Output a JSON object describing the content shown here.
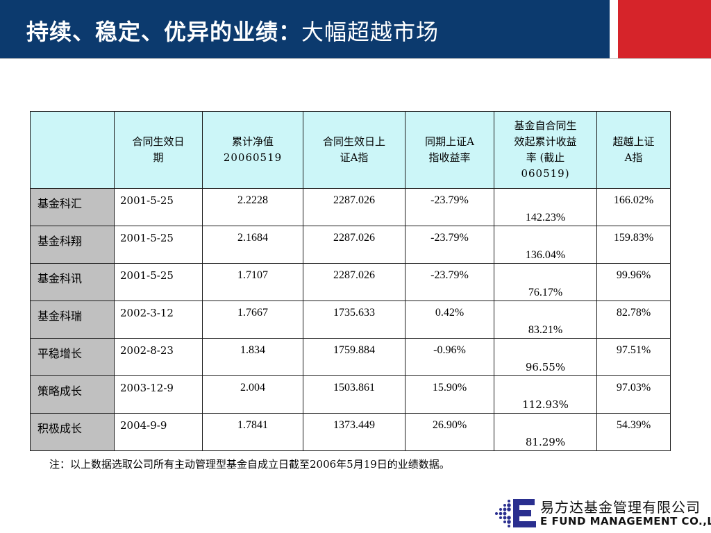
{
  "title": {
    "bold": "持续、稳定、优异的业绩：",
    "regular": "大幅超越市场"
  },
  "table": {
    "headers": [
      "",
      "合同生效日期",
      "累计净值20060519",
      "合同生效日上证A指",
      "同期上证A指收益率",
      "基金自合同生效起累计收益率（截止060519）",
      "超越上证A指"
    ],
    "header_lines": [
      [],
      [
        "合同生效日",
        "期"
      ],
      [
        "累计净值",
        "20060519"
      ],
      [
        "合同生效日上",
        "证A指"
      ],
      [
        "同期上证A",
        "指收益率"
      ],
      [
        "基金自合同生",
        "效起累计收益",
        "率 (截止",
        "060519)"
      ],
      [
        "超越上证",
        "A指"
      ]
    ],
    "rows": [
      [
        "基金科汇",
        "2001-5-25",
        "2.2228",
        "2287.026",
        "-23.79%",
        "142.23%",
        "166.02%"
      ],
      [
        "基金科翔",
        "2001-5-25",
        "2.1684",
        "2287.026",
        "-23.79%",
        "136.04%",
        "159.83%"
      ],
      [
        "基金科讯",
        "2001-5-25",
        "1.7107",
        "2287.026",
        "-23.79%",
        "76.17%",
        "99.96%"
      ],
      [
        "基金科瑞",
        "2002-3-12",
        "1.7667",
        "1735.633",
        "0.42%",
        "83.21%",
        "82.78%"
      ],
      [
        "平稳增长",
        "2002-8-23",
        "1.834",
        "1759.884",
        "-0.96%",
        "96.55%",
        "97.51%"
      ],
      [
        "策略成长",
        "2003-12-9",
        "2.004",
        "1503.861",
        "15.90%",
        "112.93%",
        "97.03%"
      ],
      [
        "积极成长",
        "2004-9-9",
        "1.7841",
        "1373.449",
        "26.90%",
        "81.29%",
        "54.39%"
      ]
    ]
  },
  "footnote": "注：以上数据选取公司所有主动管理型基金自成立日截至2006年5月19日的业绩数据。",
  "logo": {
    "chinese": "易方达基金管理有限公司",
    "english": "E FUND MANAGEMENT CO.,LTD."
  },
  "colors": {
    "title_bar": "#0c3a6e",
    "accent_red": "#d6242a",
    "header_fill": "#ccf6f8",
    "name_fill": "#c0c0c0",
    "logo_blue": "#2a2f8f"
  }
}
